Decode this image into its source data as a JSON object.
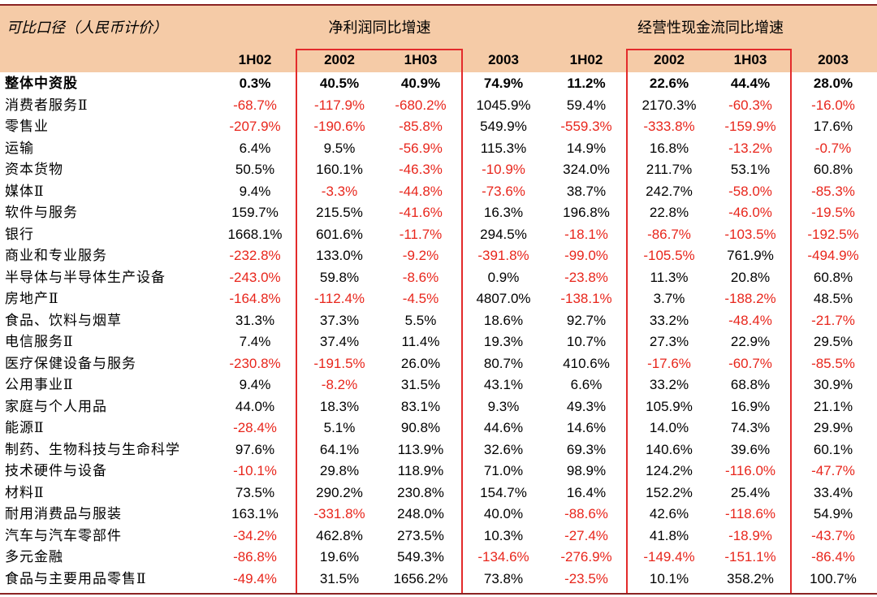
{
  "caliber": "可比口径（人民币计价）",
  "sections": {
    "profit": "净利润同比增速",
    "cashflow": "经营性现金流同比增速"
  },
  "columns": [
    "1H02",
    "2002",
    "1H03",
    "2003",
    "1H02",
    "2002",
    "1H03",
    "2003"
  ],
  "rows": [
    {
      "label": "整体中资股",
      "values": [
        "0.3%",
        "40.5%",
        "40.9%",
        "74.9%",
        "11.2%",
        "22.6%",
        "44.4%",
        "28.0%"
      ]
    },
    {
      "label": "消费者服务Ⅱ",
      "values": [
        "-68.7%",
        "-117.9%",
        "-680.2%",
        "1045.9%",
        "59.4%",
        "2170.3%",
        "-60.3%",
        "-16.0%"
      ]
    },
    {
      "label": "零售业",
      "values": [
        "-207.9%",
        "-190.6%",
        "-85.8%",
        "549.9%",
        "-559.3%",
        "-333.8%",
        "-159.9%",
        "17.6%"
      ]
    },
    {
      "label": "运输",
      "values": [
        "6.4%",
        "9.5%",
        "-56.9%",
        "115.3%",
        "14.9%",
        "16.8%",
        "-13.2%",
        "-0.7%"
      ]
    },
    {
      "label": "资本货物",
      "values": [
        "50.5%",
        "160.1%",
        "-46.3%",
        "-10.9%",
        "324.0%",
        "211.7%",
        "53.1%",
        "60.8%"
      ]
    },
    {
      "label": "媒体Ⅱ",
      "values": [
        "9.4%",
        "-3.3%",
        "-44.8%",
        "-73.6%",
        "38.7%",
        "242.7%",
        "-58.0%",
        "-85.3%"
      ]
    },
    {
      "label": "软件与服务",
      "values": [
        "159.7%",
        "215.5%",
        "-41.6%",
        "16.3%",
        "196.8%",
        "22.8%",
        "-46.0%",
        "-19.5%"
      ]
    },
    {
      "label": "银行",
      "values": [
        "1668.1%",
        "601.6%",
        "-11.7%",
        "294.5%",
        "-18.1%",
        "-86.7%",
        "-103.5%",
        "-192.5%"
      ]
    },
    {
      "label": "商业和专业服务",
      "values": [
        "-232.8%",
        "133.0%",
        "-9.2%",
        "-391.8%",
        "-99.0%",
        "-105.5%",
        "761.9%",
        "-494.9%"
      ]
    },
    {
      "label": "半导体与半导体生产设备",
      "values": [
        "-243.0%",
        "59.8%",
        "-8.6%",
        "0.9%",
        "-23.8%",
        "11.3%",
        "20.8%",
        "60.8%"
      ]
    },
    {
      "label": "房地产Ⅱ",
      "values": [
        "-164.8%",
        "-112.4%",
        "-4.5%",
        "4807.0%",
        "-138.1%",
        "3.7%",
        "-188.2%",
        "48.5%"
      ]
    },
    {
      "label": "食品、饮料与烟草",
      "values": [
        "31.3%",
        "37.3%",
        "5.5%",
        "18.6%",
        "92.7%",
        "33.2%",
        "-48.4%",
        "-21.7%"
      ]
    },
    {
      "label": "电信服务Ⅱ",
      "values": [
        "7.4%",
        "37.4%",
        "11.4%",
        "19.3%",
        "10.7%",
        "27.3%",
        "22.9%",
        "29.5%"
      ]
    },
    {
      "label": "医疗保健设备与服务",
      "values": [
        "-230.8%",
        "-191.5%",
        "26.0%",
        "80.7%",
        "410.6%",
        "-17.6%",
        "-60.7%",
        "-85.5%"
      ]
    },
    {
      "label": "公用事业Ⅱ",
      "values": [
        "9.4%",
        "-8.2%",
        "31.5%",
        "43.1%",
        "6.6%",
        "33.2%",
        "68.8%",
        "30.9%"
      ]
    },
    {
      "label": "家庭与个人用品",
      "values": [
        "44.0%",
        "18.3%",
        "83.1%",
        "9.3%",
        "49.3%",
        "105.9%",
        "16.9%",
        "21.1%"
      ]
    },
    {
      "label": "能源Ⅱ",
      "values": [
        "-28.4%",
        "5.1%",
        "90.8%",
        "44.6%",
        "14.6%",
        "14.0%",
        "74.3%",
        "29.9%"
      ]
    },
    {
      "label": "制药、生物科技与生命科学",
      "values": [
        "97.6%",
        "64.1%",
        "113.9%",
        "32.6%",
        "69.3%",
        "140.6%",
        "39.6%",
        "60.1%"
      ]
    },
    {
      "label": "技术硬件与设备",
      "values": [
        "-10.1%",
        "29.8%",
        "118.9%",
        "71.0%",
        "98.9%",
        "124.2%",
        "-116.0%",
        "-47.7%"
      ]
    },
    {
      "label": "材料Ⅱ",
      "values": [
        "73.5%",
        "290.2%",
        "230.8%",
        "154.7%",
        "16.4%",
        "152.2%",
        "25.4%",
        "33.4%"
      ]
    },
    {
      "label": "耐用消费品与服装",
      "values": [
        "163.1%",
        "-331.8%",
        "248.0%",
        "40.0%",
        "-88.6%",
        "42.6%",
        "-118.6%",
        "54.9%"
      ]
    },
    {
      "label": "汽车与汽车零部件",
      "values": [
        "-34.2%",
        "462.8%",
        "273.5%",
        "10.3%",
        "-27.4%",
        "41.8%",
        "-18.9%",
        "-43.7%"
      ]
    },
    {
      "label": "多元金融",
      "values": [
        "-86.8%",
        "19.6%",
        "549.3%",
        "-134.6%",
        "-276.9%",
        "-149.4%",
        "-151.1%",
        "-86.4%"
      ]
    },
    {
      "label": "食品与主要用品零售Ⅱ",
      "values": [
        "-49.4%",
        "31.5%",
        "1656.2%",
        "73.8%",
        "-23.5%",
        "10.1%",
        "358.2%",
        "100.7%"
      ]
    }
  ],
  "colors": {
    "header_bg": "#f5cba7",
    "negative": "#e8261c",
    "positive": "#000000",
    "highlight_box": "#e32b2b",
    "rule": "#8b2323"
  }
}
